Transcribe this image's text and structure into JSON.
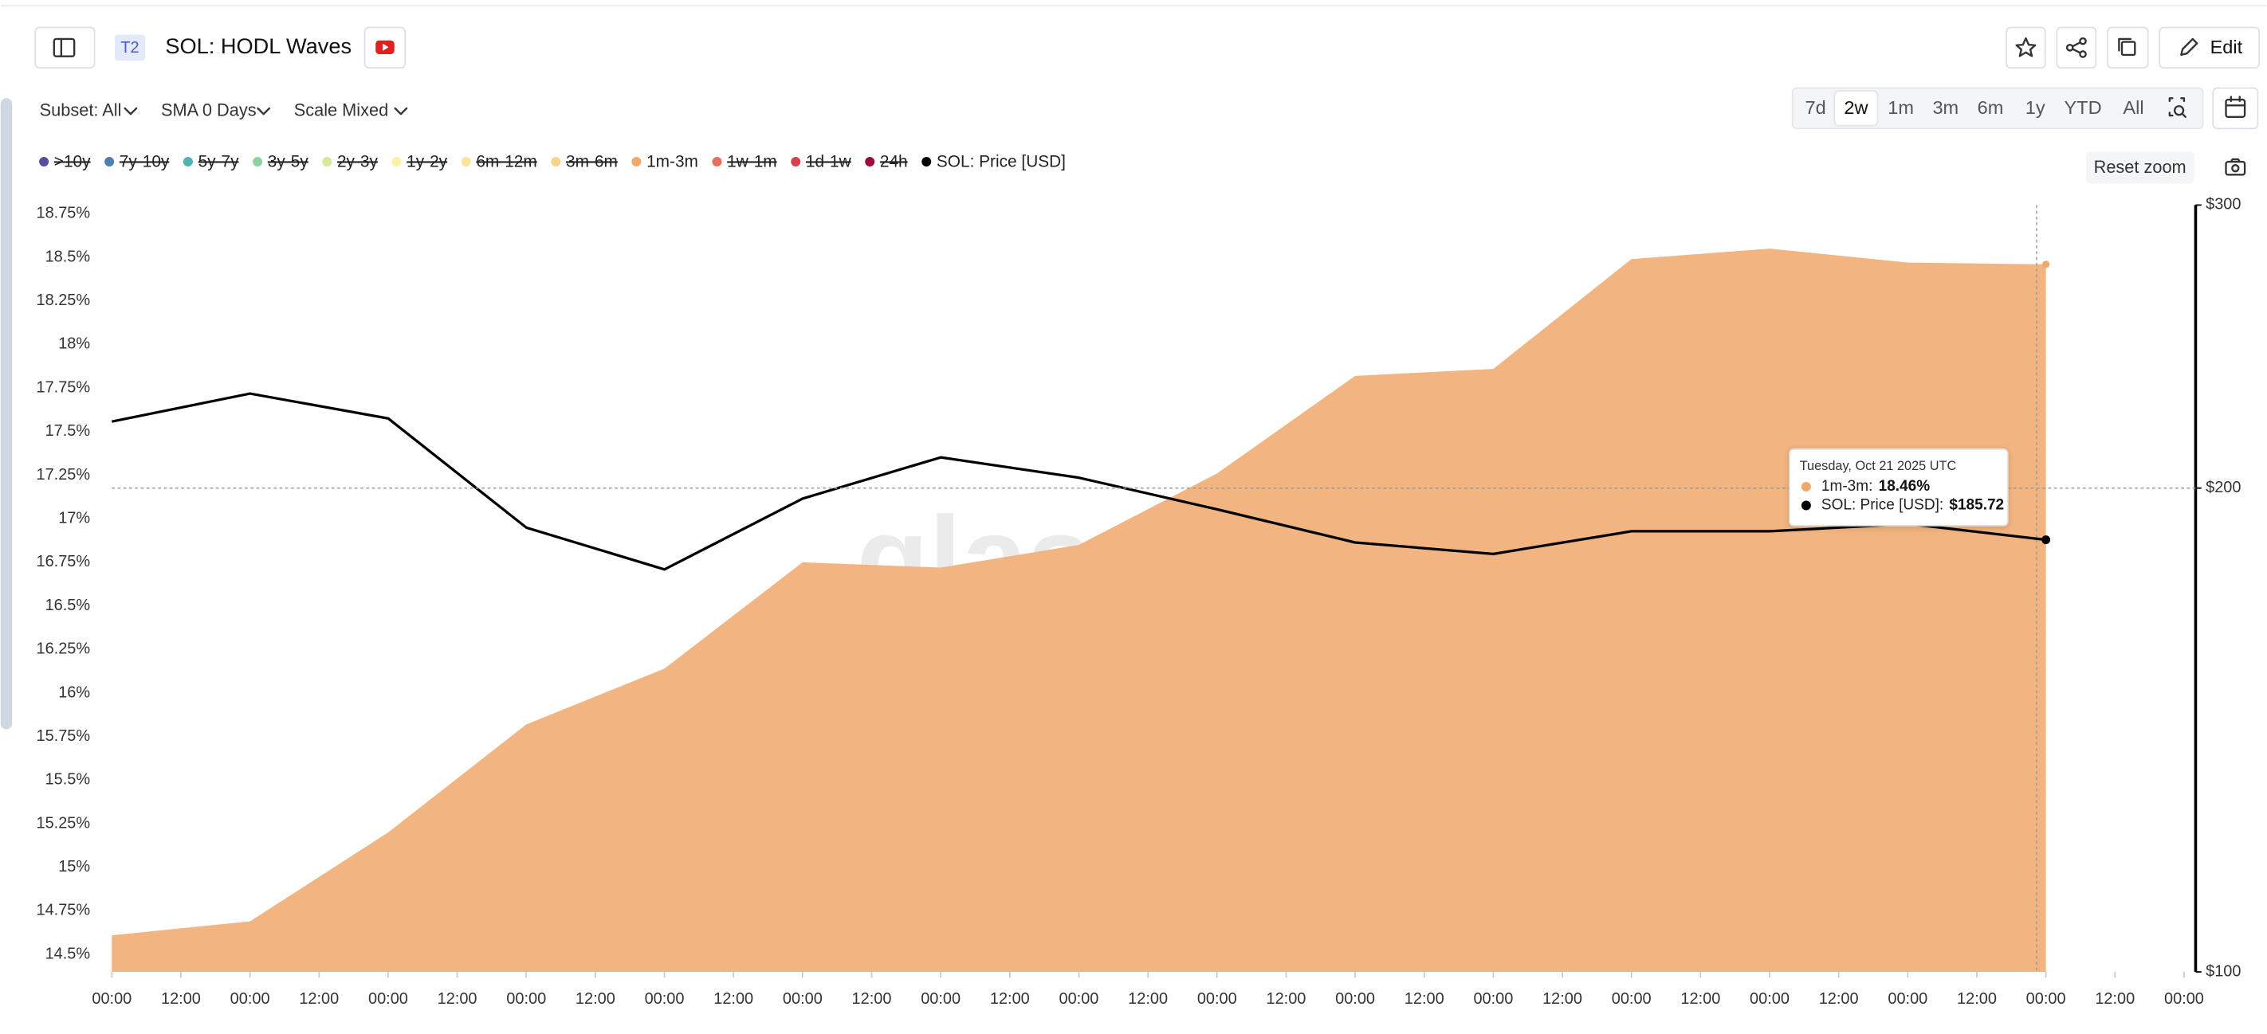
{
  "header": {
    "badge": "T2",
    "title": "SOL: HODL Waves",
    "edit": "Edit"
  },
  "toolbar": {
    "subset": "Subset: All",
    "sma": "SMA 0 Days",
    "scale": "Scale Mixed",
    "ranges": [
      "7d",
      "2w",
      "1m",
      "3m",
      "6m",
      "1y",
      "YTD",
      "All"
    ],
    "selected_range": "2w",
    "reset_zoom": "Reset zoom"
  },
  "watermark": "glassnode",
  "tooltip": {
    "date": "Tuesday, Oct 21 2025 UTC",
    "rows": [
      {
        "label": "1m-3m:",
        "value": "18.46%",
        "color": "#f0a868"
      },
      {
        "label": "SOL: Price [USD]:",
        "value": "$185.72",
        "color": "#000000"
      }
    ]
  },
  "chart_data": {
    "type": "area-line",
    "x": [
      0,
      24,
      48,
      72,
      96,
      120,
      144,
      168,
      192,
      216,
      240,
      264,
      288,
      312,
      336
    ],
    "xlim": [
      0,
      360
    ],
    "xticks": [
      {
        "value": 0,
        "label": "00:00"
      },
      {
        "value": 12,
        "label": "12:00"
      },
      {
        "value": 24,
        "label": "00:00"
      },
      {
        "value": 36,
        "label": "12:00"
      },
      {
        "value": 48,
        "label": "00:00"
      },
      {
        "value": 60,
        "label": "12:00"
      },
      {
        "value": 72,
        "label": "00:00"
      },
      {
        "value": 84,
        "label": "12:00"
      },
      {
        "value": 96,
        "label": "00:00"
      },
      {
        "value": 108,
        "label": "12:00"
      },
      {
        "value": 120,
        "label": "00:00"
      },
      {
        "value": 132,
        "label": "12:00"
      },
      {
        "value": 144,
        "label": "00:00"
      },
      {
        "value": 156,
        "label": "12:00"
      },
      {
        "value": 168,
        "label": "00:00"
      },
      {
        "value": 180,
        "label": "12:00"
      },
      {
        "value": 192,
        "label": "00:00"
      },
      {
        "value": 204,
        "label": "12:00"
      },
      {
        "value": 216,
        "label": "00:00"
      },
      {
        "value": 228,
        "label": "12:00"
      },
      {
        "value": 240,
        "label": "00:00"
      },
      {
        "value": 252,
        "label": "12:00"
      },
      {
        "value": 264,
        "label": "00:00"
      },
      {
        "value": 276,
        "label": "12:00"
      },
      {
        "value": 288,
        "label": "00:00"
      },
      {
        "value": 300,
        "label": "12:00"
      },
      {
        "value": 312,
        "label": "00:00"
      },
      {
        "value": 324,
        "label": "12:00"
      },
      {
        "value": 336,
        "label": "00:00"
      },
      {
        "value": 348,
        "label": "12:00"
      },
      {
        "value": 360,
        "label": "00:00"
      }
    ],
    "ylim": [
      14.4,
      18.8
    ],
    "yticks": [
      {
        "value": 14.5,
        "label": "14.5%"
      },
      {
        "value": 14.75,
        "label": "14.75%"
      },
      {
        "value": 15,
        "label": "15%"
      },
      {
        "value": 15.25,
        "label": "15.25%"
      },
      {
        "value": 15.5,
        "label": "15.5%"
      },
      {
        "value": 15.75,
        "label": "15.75%"
      },
      {
        "value": 16,
        "label": "16%"
      },
      {
        "value": 16.25,
        "label": "16.25%"
      },
      {
        "value": 16.5,
        "label": "16.5%"
      },
      {
        "value": 16.75,
        "label": "16.75%"
      },
      {
        "value": 17,
        "label": "17%"
      },
      {
        "value": 17.25,
        "label": "17.25%"
      },
      {
        "value": 17.5,
        "label": "17.5%"
      },
      {
        "value": 17.75,
        "label": "17.75%"
      },
      {
        "value": 18,
        "label": "18%"
      },
      {
        "value": 18.25,
        "label": "18.25%"
      },
      {
        "value": 18.5,
        "label": "18.5%"
      },
      {
        "value": 18.75,
        "label": "18.75%"
      }
    ],
    "y2lim": [
      100,
      300
    ],
    "y2_scale": "log",
    "y2ticks": [
      {
        "value": 100,
        "label": "$100"
      },
      {
        "value": 200,
        "label": "$200"
      },
      {
        "value": 300,
        "label": "$300"
      }
    ],
    "series": [
      {
        "name": ">10y",
        "color": "#5b4a9e",
        "visible": false
      },
      {
        "name": "7y-10y",
        "color": "#4a7fb5",
        "visible": false
      },
      {
        "name": "5y-7y",
        "color": "#4fb3b0",
        "visible": false
      },
      {
        "name": "3y-5y",
        "color": "#8fd19e",
        "visible": false
      },
      {
        "name": "2y-3y",
        "color": "#d4ea9a",
        "visible": false
      },
      {
        "name": "1y-2y",
        "color": "#f7f3a0",
        "visible": false
      },
      {
        "name": "6m-12m",
        "color": "#fbe39a",
        "visible": false
      },
      {
        "name": "3m-6m",
        "color": "#f9d38a",
        "visible": false
      },
      {
        "name": "1m-3m",
        "color": "#f0a868",
        "fill": "#f2b480",
        "visible": true,
        "kind": "area",
        "values": [
          14.61,
          14.69,
          15.2,
          15.82,
          16.14,
          16.75,
          16.72,
          16.85,
          17.26,
          17.82,
          17.86,
          18.49,
          18.55,
          18.47,
          18.46
        ]
      },
      {
        "name": "1w-1m",
        "color": "#e8705a",
        "visible": false
      },
      {
        "name": "1d-1w",
        "color": "#d6404e",
        "visible": false
      },
      {
        "name": "24h",
        "color": "#9e0a3e",
        "visible": false
      },
      {
        "name": "SOL: Price [USD]",
        "color": "#000000",
        "visible": true,
        "kind": "line",
        "axis": "y2",
        "values": [
          220,
          229,
          221,
          189,
          178,
          197,
          209,
          203,
          194,
          185,
          182,
          188,
          188,
          190,
          185.72
        ]
      }
    ]
  }
}
